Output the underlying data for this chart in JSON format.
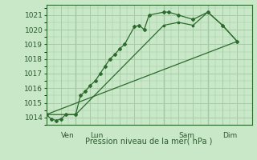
{
  "background_color": "#c8e8c8",
  "grid_color": "#a8cca8",
  "line_color": "#2d6a2d",
  "marker_color": "#2d6a2d",
  "xlabel": "Pression niveau de la mer( hPa )",
  "ylim": [
    1013.5,
    1021.7
  ],
  "yticks": [
    1014,
    1015,
    1016,
    1017,
    1018,
    1019,
    1020,
    1021
  ],
  "xlim": [
    0,
    84
  ],
  "day_positions": [
    6,
    18,
    54,
    72
  ],
  "day_labels": [
    "Ven",
    "Lun",
    "Sam",
    "Dim"
  ],
  "vline_positions": [
    12,
    48,
    66
  ],
  "series1_x": [
    0,
    2,
    4,
    6,
    8,
    12,
    14,
    16,
    18,
    20,
    22,
    24,
    26,
    28,
    30,
    32,
    36,
    38,
    40,
    42,
    48,
    50,
    54,
    60,
    66,
    72,
    78
  ],
  "series1_y": [
    1014.2,
    1013.9,
    1013.8,
    1013.9,
    1014.2,
    1014.2,
    1015.5,
    1015.8,
    1016.2,
    1016.5,
    1017.0,
    1017.5,
    1018.0,
    1018.3,
    1018.7,
    1019.0,
    1020.2,
    1020.3,
    1020.0,
    1021.0,
    1021.2,
    1021.2,
    1021.0,
    1020.7,
    1021.2,
    1020.3,
    1019.2
  ],
  "series2_x": [
    0,
    12,
    48,
    54,
    60,
    66,
    72,
    78
  ],
  "series2_y": [
    1014.2,
    1014.2,
    1020.3,
    1020.5,
    1020.3,
    1021.2,
    1020.3,
    1019.2
  ],
  "series3_x": [
    0,
    78
  ],
  "series3_y": [
    1014.2,
    1019.2
  ]
}
